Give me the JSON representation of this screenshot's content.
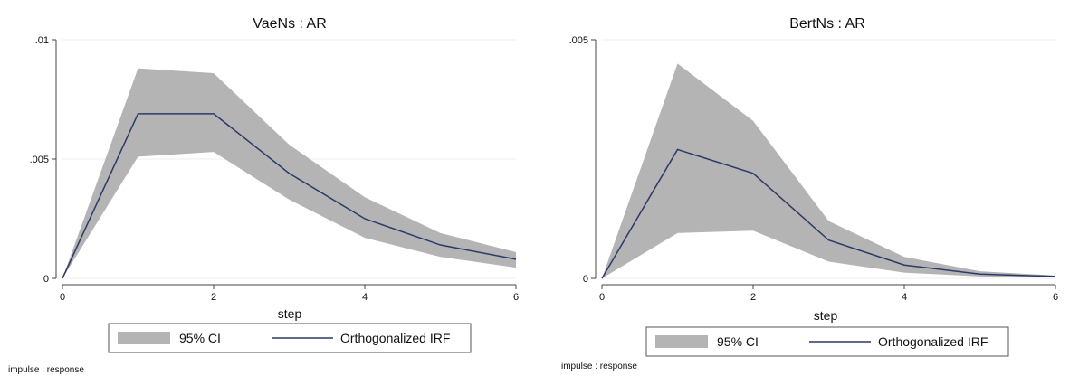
{
  "note": "impulse : response",
  "legend": {
    "ci_label": "95% CI",
    "irf_label": "Orthogonalized IRF"
  },
  "colors": {
    "band": "#b4b4b4",
    "line": "#2b3a67",
    "grid": "#ececec",
    "axis": "#444444"
  },
  "chart_data": [
    {
      "type": "area",
      "title": "VaeNs : AR",
      "xlabel": "step",
      "ylabel": "",
      "xlim": [
        0,
        6
      ],
      "ylim": [
        0,
        0.01
      ],
      "xticks": [
        0,
        2,
        4,
        6
      ],
      "xtick_labels": [
        "0",
        "2",
        "4",
        "6"
      ],
      "yticks": [
        0,
        0.005,
        0.01
      ],
      "ytick_labels": [
        "0",
        ".005",
        ".01"
      ],
      "grid": true,
      "legend_position": "bottom",
      "x": [
        0,
        1,
        2,
        3,
        4,
        5,
        6
      ],
      "series": [
        {
          "name": "95% CI",
          "kind": "band",
          "lower": [
            0,
            0.0051,
            0.0053,
            0.0033,
            0.0017,
            0.0009,
            0.00045
          ],
          "upper": [
            0,
            0.0088,
            0.0086,
            0.0056,
            0.0034,
            0.0019,
            0.0011
          ]
        },
        {
          "name": "Orthogonalized IRF",
          "kind": "line",
          "values": [
            0,
            0.0069,
            0.0069,
            0.0044,
            0.0025,
            0.0014,
            0.0008
          ]
        }
      ]
    },
    {
      "type": "area",
      "title": "BertNs : AR",
      "xlabel": "step",
      "ylabel": "",
      "xlim": [
        0,
        6
      ],
      "ylim": [
        0,
        0.005
      ],
      "xticks": [
        0,
        2,
        4,
        6
      ],
      "xtick_labels": [
        "0",
        "2",
        "4",
        "6"
      ],
      "yticks": [
        0,
        0.005
      ],
      "ytick_labels": [
        "0",
        ".005"
      ],
      "grid": true,
      "legend_position": "bottom",
      "x": [
        0,
        1,
        2,
        3,
        4,
        5,
        6
      ],
      "series": [
        {
          "name": "95% CI",
          "kind": "band",
          "lower": [
            0,
            0.00095,
            0.001,
            0.00035,
            0.00012,
            4e-05,
            2e-05
          ],
          "upper": [
            0,
            0.0045,
            0.0033,
            0.0012,
            0.00045,
            0.00015,
            6e-05
          ]
        },
        {
          "name": "Orthogonalized IRF",
          "kind": "line",
          "values": [
            0,
            0.0027,
            0.0022,
            0.0008,
            0.00028,
            9e-05,
            4e-05
          ]
        }
      ]
    }
  ]
}
